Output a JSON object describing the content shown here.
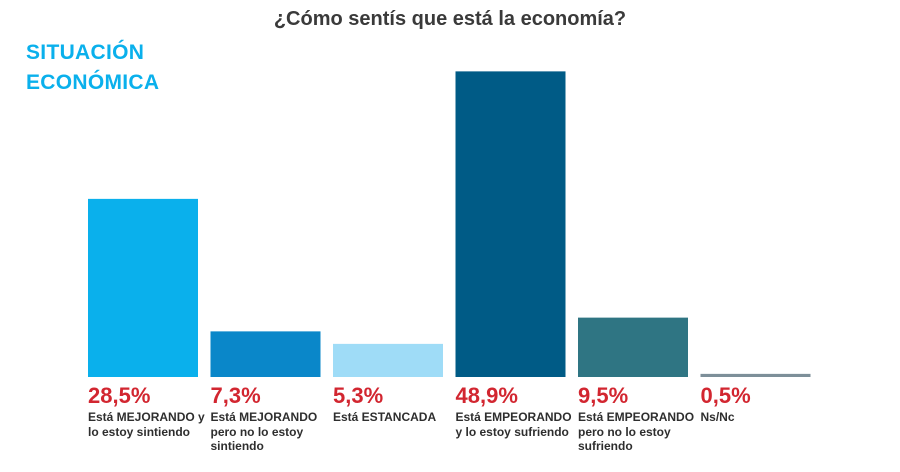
{
  "title": "¿Cómo sentís que está la economía?",
  "section_label": [
    "SITUACIÓN",
    "ECONÓMICA"
  ],
  "chart_data": {
    "type": "bar",
    "title": "¿Cómo sentís que está la economía?",
    "categories": [
      "Está MEJORANDO y lo estoy sintiendo",
      "Está MEJORANDO pero no lo estoy sintiendo",
      "Está ESTANCADA",
      "Está EMPEORANDO y lo estoy sufriendo",
      "Está EMPEORANDO pero no lo estoy sufriendo",
      "Ns/Nc"
    ],
    "values": [
      28.5,
      7.3,
      5.3,
      48.9,
      9.5,
      0.5
    ],
    "value_labels": [
      "28,5%",
      "7,3%",
      "5,3%",
      "48,9%",
      "9,5%",
      "0,5%"
    ],
    "colors": [
      "#0ab0ec",
      "#0a87c9",
      "#9fdcf7",
      "#005b86",
      "#2f7583",
      "#7d8f99"
    ],
    "value_color": "#d22630",
    "unit": "%",
    "ylim": [
      0,
      50
    ],
    "grid": false,
    "legend": "none"
  }
}
